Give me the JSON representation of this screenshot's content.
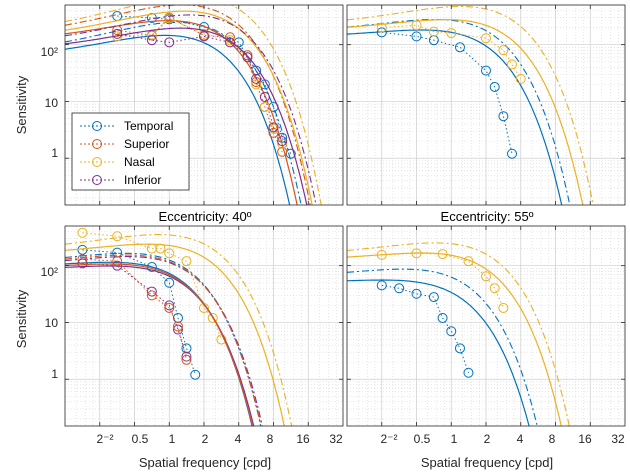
{
  "chart_data": [
    {
      "type": "line",
      "title": "",
      "xlabel": "",
      "ylabel": "Sensitivity",
      "xscale": "log2",
      "yscale": "log10",
      "xlim": [
        0.125,
        32
      ],
      "ylim": [
        0.15,
        500
      ],
      "grid": true,
      "legend": "bottom-left",
      "xticks": [],
      "yticks": [
        "10²",
        "10",
        "1"
      ],
      "series": [
        {
          "name": "Temporal",
          "color": "#0072BD",
          "points": [
            [
              0.354,
              320
            ],
            [
              0.707,
              295
            ],
            [
              1.0,
              280
            ],
            [
              2.0,
              205
            ],
            [
              4.0,
              110
            ],
            [
              5.66,
              35
            ],
            [
              6.73,
              20
            ],
            [
              8.0,
              8
            ],
            [
              9.51,
              2.3
            ],
            [
              11.3,
              1.2
            ]
          ],
          "fit_solid": {
            "a": 55,
            "f0": 0.18,
            "fc": 1.1
          },
          "fit_dash": {
            "a": 65,
            "f0": 0.14,
            "fc": 1.3
          }
        },
        {
          "name": "Superior",
          "color": "#D95319",
          "points": [
            [
              0.354,
              180
            ],
            [
              0.707,
              145
            ],
            [
              1.0,
              300
            ],
            [
              2.0,
              145
            ],
            [
              3.36,
              135
            ],
            [
              4.76,
              65
            ],
            [
              5.66,
              22
            ],
            [
              6.73,
              8
            ],
            [
              8.0,
              2.8
            ],
            [
              9.51,
              1.3
            ]
          ],
          "fit_solid": {
            "a": 110,
            "f0": 0.22,
            "fc": 1.2
          },
          "fit_dash": {
            "a": 135,
            "f0": 0.16,
            "fc": 1.45
          }
        },
        {
          "name": "Nasal",
          "color": "#EDB120",
          "points": [
            [
              0.354,
              140
            ],
            [
              0.707,
              150
            ],
            [
              1.0,
              290
            ],
            [
              2.0,
              155
            ],
            [
              3.36,
              120
            ],
            [
              4.76,
              60
            ],
            [
              5.66,
              20
            ],
            [
              6.73,
              8
            ],
            [
              8.0,
              3.3
            ],
            [
              9.51,
              1.8
            ]
          ],
          "fit_solid": {
            "a": 120,
            "f0": 0.2,
            "fc": 1.55
          },
          "fit_dash": {
            "a": 150,
            "f0": 0.15,
            "fc": 1.75
          }
        },
        {
          "name": "Inferior",
          "color": "#7E2F8E",
          "points": [
            [
              0.354,
              155
            ],
            [
              0.707,
              120
            ],
            [
              1.0,
              110
            ],
            [
              2.0,
              140
            ],
            [
              3.36,
              110
            ],
            [
              4.76,
              60
            ],
            [
              5.66,
              25
            ],
            [
              6.73,
              12
            ],
            [
              8.0,
              3.5
            ],
            [
              9.51,
              2.0
            ]
          ],
          "fit_solid": {
            "a": 75,
            "f0": 0.25,
            "fc": 1.5
          },
          "fit_dash": {
            "a": 95,
            "f0": 0.2,
            "fc": 1.7
          }
        }
      ]
    },
    {
      "type": "line",
      "title": "",
      "xlabel": "",
      "ylabel": "",
      "xscale": "log2",
      "yscale": "log10",
      "xlim": [
        0.125,
        32
      ],
      "ylim": [
        0.15,
        500
      ],
      "grid": true,
      "xticks": [],
      "yticks": [],
      "series": [
        {
          "name": "Temporal",
          "color": "#0072BD",
          "points": [
            [
              0.25,
              165
            ],
            [
              0.5,
              140
            ],
            [
              0.707,
              120
            ],
            [
              1.19,
              90
            ],
            [
              2.0,
              35
            ],
            [
              2.38,
              18
            ],
            [
              2.83,
              5.5
            ],
            [
              3.36,
              1.2
            ]
          ],
          "fit_solid": {
            "a": 130,
            "f0": 0.35,
            "fc": 0.9
          },
          "fit_dash": {
            "a": 160,
            "f0": 0.28,
            "fc": 1.0
          }
        },
        {
          "name": "Nasal",
          "color": "#EDB120",
          "points": [
            [
              0.25,
              200
            ],
            [
              0.5,
              220
            ],
            [
              0.707,
              170
            ],
            [
              1.0,
              160
            ],
            [
              2.0,
              130
            ],
            [
              2.83,
              80
            ],
            [
              3.36,
              45
            ],
            [
              4.0,
              25
            ]
          ],
          "fit_solid": {
            "a": 170,
            "f0": 0.4,
            "fc": 1.3
          },
          "fit_dash": {
            "a": 210,
            "f0": 0.3,
            "fc": 1.5
          }
        }
      ]
    },
    {
      "type": "line",
      "title": "Eccentricity: 40º",
      "xlabel": "",
      "ylabel": "Sensitivity",
      "xscale": "log2",
      "yscale": "log10",
      "xlim": [
        0.125,
        32
      ],
      "ylim": [
        0.15,
        500
      ],
      "grid": true,
      "xticks": [],
      "yticks": [
        "10²",
        "10",
        "1"
      ],
      "series": [
        {
          "name": "Temporal",
          "color": "#0072BD",
          "points": [
            [
              0.177,
              190
            ],
            [
              0.354,
              170
            ],
            [
              0.707,
              95
            ],
            [
              1.0,
              50
            ],
            [
              1.19,
              12
            ],
            [
              1.41,
              3.5
            ],
            [
              1.68,
              1.2
            ]
          ],
          "fit_solid": {
            "a": 90,
            "f0": 0.25,
            "fc": 0.55
          },
          "fit_dash": {
            "a": 105,
            "f0": 0.2,
            "fc": 0.62
          }
        },
        {
          "name": "Nasal",
          "color": "#EDB120",
          "points": [
            [
              0.177,
              380
            ],
            [
              0.354,
              330
            ],
            [
              0.707,
              200
            ],
            [
              0.84,
              200
            ],
            [
              1.0,
              165
            ],
            [
              1.41,
              120
            ],
            [
              2.0,
              18
            ],
            [
              2.38,
              12
            ],
            [
              2.83,
              5
            ]
          ],
          "fit_solid": {
            "a": 150,
            "f0": 0.3,
            "fc": 0.95
          },
          "fit_dash": {
            "a": 180,
            "f0": 0.25,
            "fc": 1.05
          }
        },
        {
          "name": "Inferior",
          "color": "#7E2F8E",
          "points": [
            [
              0.177,
              110
            ],
            [
              0.354,
              100
            ],
            [
              0.707,
              35
            ],
            [
              1.0,
              20
            ],
            [
              1.19,
              7.5
            ],
            [
              1.41,
              2.5
            ]
          ],
          "fit_solid": {
            "a": 80,
            "f0": 0.28,
            "fc": 0.58
          },
          "fit_dash": {
            "a": 95,
            "f0": 0.22,
            "fc": 0.65
          }
        },
        {
          "name": "Superior",
          "color": "#D95319",
          "points": [
            [
              0.177,
              130
            ],
            [
              0.354,
              120
            ],
            [
              0.707,
              30
            ],
            [
              1.0,
              18
            ],
            [
              1.19,
              8.5
            ],
            [
              1.41,
              2.2
            ]
          ],
          "fit_solid": {
            "a": 85,
            "f0": 0.26,
            "fc": 0.56
          },
          "fit_dash": {
            "a": 100,
            "f0": 0.21,
            "fc": 0.63
          }
        }
      ]
    },
    {
      "type": "line",
      "title": "Eccentricity: 55º",
      "xlabel": "",
      "ylabel": "",
      "xscale": "log2",
      "yscale": "log10",
      "xlim": [
        0.125,
        32
      ],
      "ylim": [
        0.15,
        500
      ],
      "grid": true,
      "xticks": [],
      "yticks": [],
      "series": [
        {
          "name": "Temporal",
          "color": "#0072BD",
          "points": [
            [
              0.25,
              45
            ],
            [
              0.354,
              40
            ],
            [
              0.5,
              32
            ],
            [
              0.707,
              28
            ],
            [
              0.841,
              12
            ],
            [
              1.0,
              7
            ],
            [
              1.19,
              3.5
            ],
            [
              1.41,
              1.3
            ]
          ],
          "fit_solid": {
            "a": 48,
            "f0": 0.3,
            "fc": 0.55
          },
          "fit_dash": {
            "a": 60,
            "f0": 0.22,
            "fc": 0.6
          }
        },
        {
          "name": "Nasal",
          "color": "#EDB120",
          "points": [
            [
              0.25,
              155
            ],
            [
              0.5,
              165
            ],
            [
              0.841,
              160
            ],
            [
              1.41,
              120
            ],
            [
              2.0,
              65
            ],
            [
              2.38,
              40
            ],
            [
              2.83,
              18
            ]
          ],
          "fit_solid": {
            "a": 120,
            "f0": 0.35,
            "fc": 0.9
          },
          "fit_dash": {
            "a": 145,
            "f0": 0.28,
            "fc": 1.0
          }
        }
      ]
    }
  ],
  "labels": {
    "ylabel_top": "Sensitivity",
    "ylabel_bottom": "Sensitivity",
    "xlabel_left": "Spatial frequency [cpd]",
    "xlabel_right": "Spatial frequency [cpd]",
    "title_bl": "Eccentricity: 40º",
    "title_br": "Eccentricity: 55º"
  },
  "yticks": [
    "10²",
    "10",
    "1"
  ],
  "xticks": [
    "2⁻²",
    "0.5",
    "1",
    "2",
    "4",
    "8",
    "16",
    "32"
  ],
  "legend": [
    "Temporal",
    "Superior",
    "Nasal",
    "Inferior"
  ],
  "colors": {
    "temporal": "#0072BD",
    "superior": "#D95319",
    "nasal": "#EDB120",
    "inferior": "#7E2F8E",
    "axis": "#262626",
    "grid": "#dcdcdc"
  }
}
